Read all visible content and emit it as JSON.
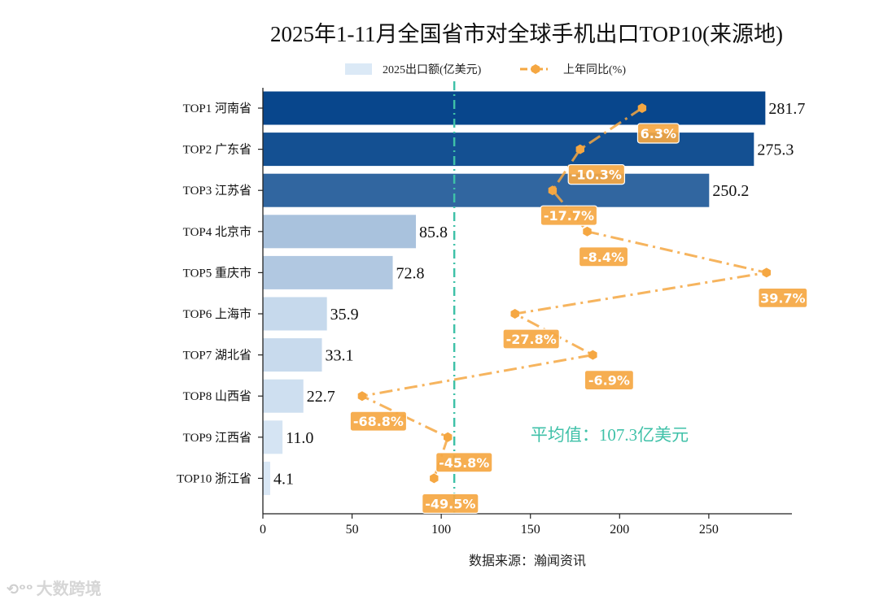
{
  "title": "2025年1-11月全国省市对全球手机出口TOP10(来源地)",
  "source_note": "数据来源：瀚闻资讯",
  "average_label": "平均值：107.3亿美元",
  "watermark": {
    "logo": "⟲ᵒᵒ",
    "text": "大数跨境"
  },
  "colors": {
    "bar_dark": "#08468c",
    "bar_light": "#dbe9f6",
    "line": "#f5a742",
    "average_line": "#3fc1a8",
    "label_box": "#f5a742"
  },
  "chart_data": {
    "type": "bar",
    "orientation": "horizontal",
    "title": "2025年1-11月全国省市对全球手机出口TOP10(来源地)",
    "xlabel": "",
    "ylabel": "",
    "xlim": [
      0,
      295
    ],
    "xticks": [
      0,
      50,
      100,
      150,
      200,
      250
    ],
    "grid": false,
    "legend_position": "top",
    "categories": [
      "TOP1 河南省",
      "TOP2 广东省",
      "TOP3 江苏省",
      "TOP4 北京市",
      "TOP5 重庆市",
      "TOP6 上海市",
      "TOP7 湖北省",
      "TOP8 山西省",
      "TOP9 江西省",
      "TOP10 浙江省"
    ],
    "series": [
      {
        "name": "2025出口额(亿美元)",
        "type": "bar",
        "values": [
          281.7,
          275.3,
          250.2,
          85.8,
          72.8,
          35.9,
          33.1,
          22.7,
          11.0,
          4.1
        ],
        "value_labels": [
          "281.7",
          "275.3",
          "250.2",
          "85.8",
          "72.8",
          "35.9",
          "33.1",
          "22.7",
          "11.0",
          "4.1"
        ]
      },
      {
        "name": "上年同比(%)",
        "type": "line",
        "values": [
          6.3,
          -10.3,
          -17.7,
          -8.4,
          39.7,
          -27.8,
          -6.9,
          -68.8,
          -45.8,
          -49.5
        ],
        "value_labels": [
          "6.3%",
          "-10.3%",
          "-17.7%",
          "-8.4%",
          "39.7%",
          "-27.8%",
          "-6.9%",
          "-68.8%",
          "-45.8%",
          "-49.5%"
        ],
        "secondary_axis_range": [
          -75,
          45
        ]
      }
    ],
    "average": {
      "value": 107.3,
      "label": "平均值：107.3亿美元"
    }
  }
}
